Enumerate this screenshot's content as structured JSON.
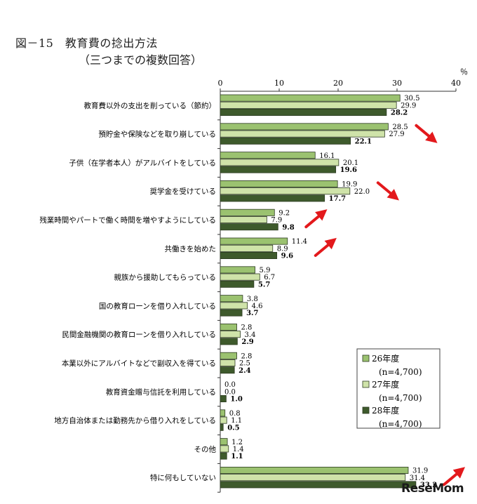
{
  "title": "図－15　教育費の捻出方法",
  "subtitle": "（三つまでの複数回答）",
  "unit": "％",
  "watermark": "ReseMom",
  "colors": {
    "s26": "#9bc270",
    "s27": "#cfe3a9",
    "s28": "#3e5a2c",
    "stroke": "#2d3b22",
    "arrow": "#e3191c"
  },
  "chart_data": {
    "type": "bar",
    "orientation": "horizontal",
    "xlim": [
      0,
      40
    ],
    "ticks": [
      0,
      10,
      20,
      30,
      40
    ],
    "categories": [
      "教育費以外の支出を削っている（節約）",
      "預貯金や保険などを取り崩している",
      "子供（在学者本人）がアルバイトをしている",
      "奨学金を受けている",
      "残業時間やパートで働く時間を増やすようにしている",
      "共働きを始めた",
      "親族から援助してもらっている",
      "国の教育ローンを借り入れしている",
      "民間金融機関の教育ローンを借り入れしている",
      "本業以外にアルバイトなどで副収入を得ている",
      "教育資金贈与信託を利用している",
      "地方自治体または勤務先から借り入れをしている",
      "その他",
      "特に何もしていない"
    ],
    "series": [
      {
        "name": "26年度",
        "sub": "(n=4,700)",
        "values": [
          30.5,
          28.5,
          16.1,
          19.9,
          9.2,
          11.4,
          5.9,
          3.8,
          2.8,
          2.8,
          0.0,
          0.8,
          1.2,
          31.9
        ],
        "labels": [
          "30.5",
          "28.5",
          "16.1",
          "19.9",
          "9.2",
          "11.4",
          "5.9",
          "3.8",
          "2.8",
          "2.8",
          "0.0",
          "0.8",
          "1.2",
          "31.9"
        ]
      },
      {
        "name": "27年度",
        "sub": "(n=4,700)",
        "values": [
          29.9,
          27.9,
          20.1,
          22.0,
          7.9,
          8.9,
          6.7,
          4.6,
          3.4,
          2.5,
          0.0,
          1.1,
          1.4,
          31.4
        ],
        "labels": [
          "29.9",
          "27.9",
          "20.1",
          "22.0",
          "7.9",
          "8.9",
          "6.7",
          "4.6",
          "3.4",
          "2.5",
          "0.0",
          "1.1",
          "1.4",
          "31.4"
        ]
      },
      {
        "name": "28年度",
        "sub": "(n=4,700)",
        "values": [
          28.2,
          22.1,
          19.6,
          17.7,
          9.8,
          9.6,
          5.7,
          3.7,
          2.9,
          2.4,
          1.0,
          0.5,
          1.1,
          33.2
        ],
        "labels": [
          "28.2",
          "22.1",
          "19.6",
          "17.7",
          "9.8",
          "9.6",
          "5.7",
          "3.7",
          "2.9",
          "2.4",
          "1.0",
          "0.5",
          "1.1",
          "33.2"
        ]
      }
    ],
    "legend_position": "lower-right",
    "annotations": [
      {
        "type": "arrow-down",
        "category_index": 1
      },
      {
        "type": "arrow-down",
        "category_index": 3
      },
      {
        "type": "arrow-up",
        "category_index": 4
      },
      {
        "type": "arrow-up",
        "category_index": 5
      },
      {
        "type": "arrow-up",
        "category_index": 13
      }
    ]
  }
}
